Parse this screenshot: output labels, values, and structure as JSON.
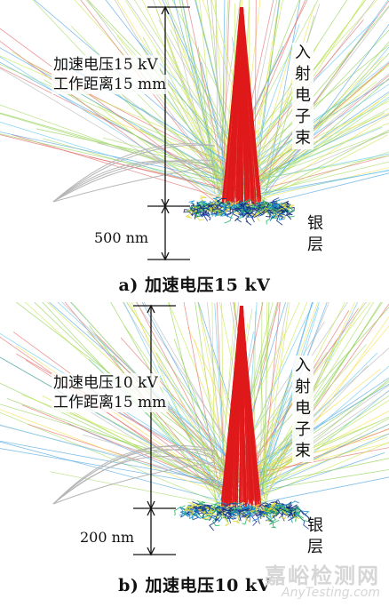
{
  "panels": [
    {
      "id": "a",
      "condition_line1": "加速电压15 kV",
      "condition_line2": "工作距离15 mm",
      "beam_label": [
        "入",
        "射",
        "电",
        "子",
        "束"
      ],
      "layer_label": [
        "银",
        "层"
      ],
      "scale_label": "500 nm",
      "caption": "a) 加速电压15 kV"
    },
    {
      "id": "b",
      "condition_line1": "加速电压10 kV",
      "condition_line2": "工作距离15 mm",
      "beam_label": [
        "入",
        "射",
        "电",
        "子",
        "束"
      ],
      "layer_label": [
        "银",
        "层"
      ],
      "scale_label": "200 nm",
      "caption": "b) 加速电压10 kV"
    }
  ],
  "watermark": {
    "cn": "嘉峪检测网",
    "en": "AnyTesting.com"
  },
  "colors": {
    "beam": "#e0191b",
    "trajectories": [
      "#8fd14f",
      "#c7e84a",
      "#5fc7f0",
      "#f5e04a",
      "#a9dc6a",
      "#e56a6a",
      "#4aa3e0",
      "#b6b6b6"
    ],
    "scatter": [
      "#1f3d99",
      "#1d8fd1",
      "#29b66a",
      "#e0d93a",
      "#0d2a7a"
    ]
  }
}
